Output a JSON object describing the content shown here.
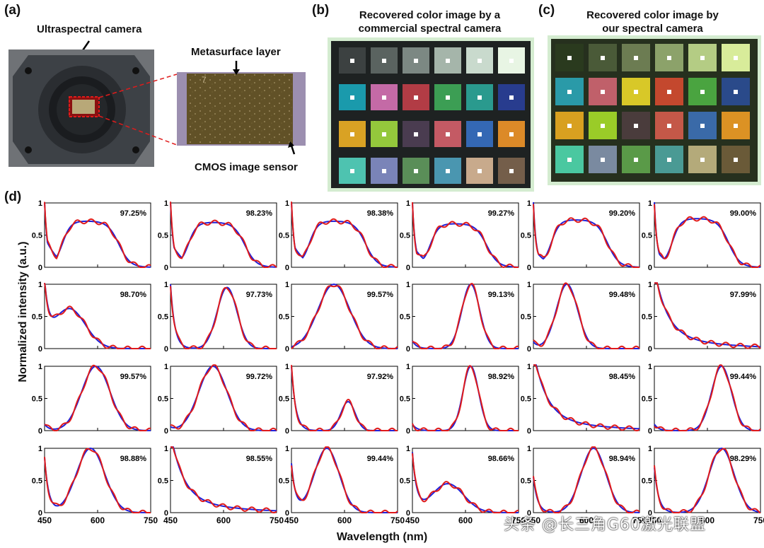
{
  "panels": {
    "a": {
      "letter": "(a)",
      "camera_label": "Ultraspectral camera",
      "meta_label": "Metasurface layer",
      "cmos_label": "CMOS image sensor",
      "zoom_text": "7"
    },
    "b": {
      "letter": "(b)",
      "title_line1": "Recovered color image by a",
      "title_line2": "commercial spectral camera",
      "bg_color": "#d4ecd0",
      "swatches": [
        [
          "#3c4141",
          "#5a6360",
          "#7c8883",
          "#a5b5aa",
          "#c9dacd",
          "#e8f5e4"
        ],
        [
          "#1a9aac",
          "#c46aa6",
          "#b23c45",
          "#3c9e54",
          "#2a9a8e",
          "#283c8e"
        ],
        [
          "#d9a224",
          "#94c83c",
          "#4a3c50",
          "#c45a64",
          "#3468b4",
          "#dc8a28"
        ],
        [
          "#4ec3b0",
          "#7a84b8",
          "#5a8e58",
          "#4a96b0",
          "#c8aa8c",
          "#745e4a"
        ]
      ]
    },
    "c": {
      "letter": "(c)",
      "title_line1": "Recovered color image by",
      "title_line2": "our spectral camera",
      "bg_color": "#d4ecd0",
      "swatches": [
        [
          "#2a3a1e",
          "#4a5a38",
          "#6c7c52",
          "#8ca26a",
          "#b4cc84",
          "#d8ec9a"
        ],
        [
          "#2a9aa8",
          "#c0606a",
          "#d8c828",
          "#c4482e",
          "#4aa440",
          "#2a4a8a"
        ],
        [
          "#d8a020",
          "#9acc28",
          "#4a3c3c",
          "#c45848",
          "#3a6aa8",
          "#dc9224"
        ],
        [
          "#4ac8a0",
          "#7a8aa0",
          "#5a9a48",
          "#4a9a94",
          "#b4aa7a",
          "#6a5a38"
        ]
      ]
    },
    "d": {
      "letter": "(d)",
      "y_axis_label": "Normalized intensity (a.u.)",
      "x_axis_label": "Wavelength (nm)"
    }
  },
  "watermark": "头条 @长三角G60激光联盟",
  "chart_data": {
    "type": "line",
    "x_range": [
      450,
      750
    ],
    "y_range": [
      0,
      1
    ],
    "x_ticks": [
      450,
      600,
      750
    ],
    "y_ticks": [
      0,
      0.5,
      1
    ],
    "x_tick_labels": [
      "450",
      "600",
      "750"
    ],
    "y_tick_labels": [
      "0",
      "0.5",
      "1"
    ],
    "xlabel": "Wavelength (nm)",
    "ylabel": "Normalized intensity (a.u.)",
    "series_colors": {
      "reference": "#1f1fd8",
      "ours": "#e01b1b"
    },
    "subplots": [
      {
        "row": 0,
        "col": 0,
        "accuracy": "97.25%",
        "kind": "plateau",
        "low": 0.48,
        "peak": 550,
        "high": 0.72,
        "start": 1.0
      },
      {
        "row": 0,
        "col": 1,
        "accuracy": "98.23%",
        "kind": "plateau",
        "low": 0.4,
        "peak": 560,
        "high": 0.7,
        "start": 1.0
      },
      {
        "row": 0,
        "col": 2,
        "accuracy": "98.38%",
        "kind": "plateau",
        "low": 0.4,
        "peak": 570,
        "high": 0.72,
        "start": 1.0
      },
      {
        "row": 0,
        "col": 3,
        "accuracy": "99.27%",
        "kind": "plateau",
        "low": 0.35,
        "peak": 560,
        "high": 0.68,
        "start": 1.0
      },
      {
        "row": 0,
        "col": 4,
        "accuracy": "99.20%",
        "kind": "plateau",
        "low": 0.3,
        "peak": 560,
        "high": 0.74,
        "start": 1.0
      },
      {
        "row": 0,
        "col": 5,
        "accuracy": "99.00%",
        "kind": "plateau",
        "low": 0.3,
        "peak": 570,
        "high": 0.76,
        "start": 1.0
      },
      {
        "row": 1,
        "col": 0,
        "accuracy": "98.70%",
        "kind": "peak",
        "start": 0.9,
        "peak": 520,
        "height": 0.62,
        "width": 45
      },
      {
        "row": 1,
        "col": 1,
        "accuracy": "97.73%",
        "kind": "peak",
        "start": 1.0,
        "peak": 610,
        "height": 0.95,
        "width": 28
      },
      {
        "row": 1,
        "col": 2,
        "accuracy": "99.57%",
        "kind": "peak",
        "start": 0.0,
        "peak": 570,
        "height": 1.0,
        "width": 45
      },
      {
        "row": 1,
        "col": 3,
        "accuracy": "99.13%",
        "kind": "peak",
        "start": 0.12,
        "peak": 615,
        "height": 1.0,
        "width": 25
      },
      {
        "row": 1,
        "col": 4,
        "accuracy": "99.48%",
        "kind": "peak",
        "start": 0.1,
        "peak": 545,
        "height": 1.0,
        "width": 30
      },
      {
        "row": 1,
        "col": 5,
        "accuracy": "97.99%",
        "kind": "decay",
        "start": 1.0
      },
      {
        "row": 2,
        "col": 0,
        "accuracy": "99.57%",
        "kind": "peak",
        "start": 0.1,
        "peak": 595,
        "height": 1.0,
        "width": 40
      },
      {
        "row": 2,
        "col": 1,
        "accuracy": "99.72%",
        "kind": "peak",
        "start": 0.05,
        "peak": 570,
        "height": 1.0,
        "width": 40
      },
      {
        "row": 2,
        "col": 2,
        "accuracy": "97.92%",
        "kind": "peak",
        "start": 1.0,
        "peak": 610,
        "height": 0.45,
        "width": 20
      },
      {
        "row": 2,
        "col": 3,
        "accuracy": "98.92%",
        "kind": "peak",
        "start": 0.1,
        "peak": 615,
        "height": 1.0,
        "width": 22
      },
      {
        "row": 2,
        "col": 4,
        "accuracy": "98.45%",
        "kind": "decay",
        "start": 1.0
      },
      {
        "row": 2,
        "col": 5,
        "accuracy": "99.44%",
        "kind": "peak",
        "start": 0.1,
        "peak": 640,
        "height": 1.0,
        "width": 28
      },
      {
        "row": 3,
        "col": 0,
        "accuracy": "98.88%",
        "kind": "peak",
        "start": 0.85,
        "peak": 580,
        "height": 1.0,
        "width": 40
      },
      {
        "row": 3,
        "col": 1,
        "accuracy": "98.55%",
        "kind": "decay",
        "start": 1.0
      },
      {
        "row": 3,
        "col": 2,
        "accuracy": "99.44%",
        "kind": "peak",
        "start": 0.75,
        "peak": 550,
        "height": 1.0,
        "width": 35
      },
      {
        "row": 3,
        "col": 3,
        "accuracy": "98.66%",
        "kind": "peak",
        "start": 0.9,
        "peak": 550,
        "height": 0.45,
        "width": 45
      },
      {
        "row": 3,
        "col": 4,
        "accuracy": "98.94%",
        "kind": "peak",
        "start": 0.55,
        "peak": 620,
        "height": 1.0,
        "width": 35
      },
      {
        "row": 3,
        "col": 5,
        "accuracy": "98.29%",
        "kind": "peak",
        "start": 0.7,
        "peak": 640,
        "height": 1.0,
        "width": 35
      }
    ]
  }
}
